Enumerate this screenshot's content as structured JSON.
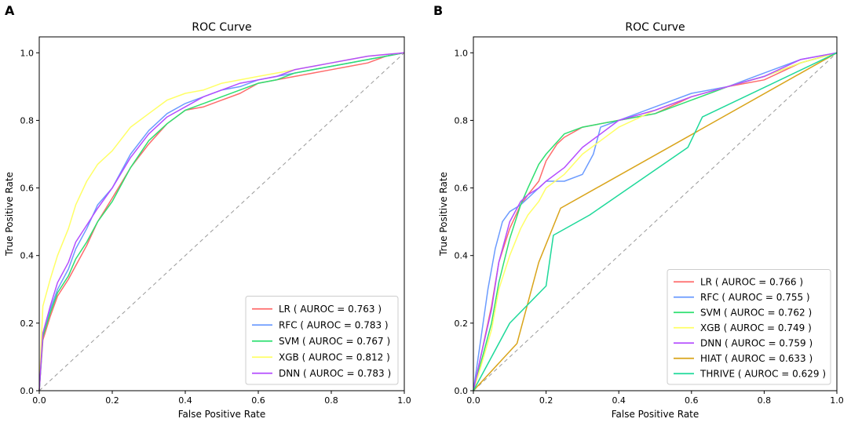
{
  "chart_data": [
    {
      "panel": "A",
      "type": "line",
      "title": "ROC Curve",
      "xlabel": "False Positive Rate",
      "ylabel": "True Positive Rate",
      "xlim": [
        0,
        1
      ],
      "ylim": [
        0,
        1
      ],
      "xticks": [
        "0.0",
        "0.2",
        "0.4",
        "0.6",
        "0.8",
        "1.0"
      ],
      "yticks": [
        "0.0",
        "0.2",
        "0.4",
        "0.6",
        "0.8",
        "1.0"
      ],
      "legend_position": "lower-right",
      "series": [
        {
          "name": "LR",
          "label": "LR ( AUROC = 0.763 )",
          "color": "#ff6b6b",
          "x": [
            0,
            0.01,
            0.03,
            0.05,
            0.08,
            0.1,
            0.13,
            0.16,
            0.2,
            0.25,
            0.3,
            0.35,
            0.4,
            0.45,
            0.5,
            0.55,
            0.6,
            0.65,
            0.7,
            0.75,
            0.8,
            0.85,
            0.9,
            0.95,
            1
          ],
          "y": [
            0,
            0.15,
            0.22,
            0.28,
            0.33,
            0.37,
            0.43,
            0.5,
            0.57,
            0.66,
            0.73,
            0.79,
            0.83,
            0.84,
            0.86,
            0.88,
            0.91,
            0.92,
            0.93,
            0.94,
            0.95,
            0.96,
            0.97,
            0.99,
            1
          ]
        },
        {
          "name": "RFC",
          "label": "RFC ( AUROC = 0.783 )",
          "color": "#6b9bff",
          "x": [
            0,
            0.01,
            0.03,
            0.05,
            0.08,
            0.1,
            0.13,
            0.16,
            0.2,
            0.25,
            0.3,
            0.35,
            0.4,
            0.45,
            0.5,
            0.55,
            0.6,
            0.65,
            0.7,
            0.75,
            0.8,
            0.85,
            0.9,
            0.95,
            1
          ],
          "y": [
            0,
            0.17,
            0.24,
            0.3,
            0.36,
            0.42,
            0.48,
            0.55,
            0.6,
            0.7,
            0.77,
            0.82,
            0.85,
            0.87,
            0.89,
            0.9,
            0.92,
            0.93,
            0.94,
            0.95,
            0.96,
            0.97,
            0.98,
            0.99,
            1
          ]
        },
        {
          "name": "SVM",
          "label": "SVM ( AUROC = 0.767 )",
          "color": "#2ee070",
          "x": [
            0,
            0.01,
            0.03,
            0.05,
            0.08,
            0.1,
            0.13,
            0.16,
            0.2,
            0.25,
            0.3,
            0.35,
            0.4,
            0.45,
            0.5,
            0.55,
            0.6,
            0.65,
            0.7,
            0.75,
            0.8,
            0.85,
            0.9,
            0.95,
            1
          ],
          "y": [
            0,
            0.16,
            0.23,
            0.29,
            0.34,
            0.39,
            0.44,
            0.5,
            0.56,
            0.66,
            0.74,
            0.79,
            0.83,
            0.85,
            0.87,
            0.89,
            0.91,
            0.92,
            0.94,
            0.95,
            0.96,
            0.97,
            0.98,
            0.99,
            1
          ]
        },
        {
          "name": "XGB",
          "label": "XGB ( AUROC = 0.812 )",
          "color": "#ffff66",
          "x": [
            0,
            0.01,
            0.03,
            0.05,
            0.08,
            0.1,
            0.13,
            0.16,
            0.2,
            0.25,
            0.3,
            0.35,
            0.4,
            0.45,
            0.5,
            0.55,
            0.6,
            0.65,
            0.7,
            0.75,
            0.8,
            0.85,
            0.9,
            0.95,
            1
          ],
          "y": [
            0,
            0.25,
            0.33,
            0.4,
            0.48,
            0.55,
            0.62,
            0.67,
            0.71,
            0.78,
            0.82,
            0.86,
            0.88,
            0.89,
            0.91,
            0.92,
            0.93,
            0.94,
            0.95,
            0.96,
            0.97,
            0.98,
            0.99,
            0.995,
            1
          ]
        },
        {
          "name": "DNN",
          "label": "DNN ( AUROC = 0.783 )",
          "color": "#b44dff",
          "x": [
            0,
            0.01,
            0.03,
            0.05,
            0.08,
            0.1,
            0.13,
            0.16,
            0.2,
            0.25,
            0.3,
            0.35,
            0.4,
            0.45,
            0.5,
            0.55,
            0.6,
            0.65,
            0.7,
            0.75,
            0.8,
            0.85,
            0.9,
            0.95,
            1
          ],
          "y": [
            0,
            0.17,
            0.25,
            0.32,
            0.38,
            0.44,
            0.49,
            0.54,
            0.6,
            0.69,
            0.76,
            0.81,
            0.84,
            0.87,
            0.89,
            0.91,
            0.92,
            0.93,
            0.95,
            0.96,
            0.97,
            0.98,
            0.99,
            0.995,
            1
          ]
        }
      ]
    },
    {
      "panel": "B",
      "type": "line",
      "title": "ROC Curve",
      "xlabel": "False Positive Rate",
      "ylabel": "True Positive Rate",
      "xlim": [
        0,
        1
      ],
      "ylim": [
        0,
        1
      ],
      "xticks": [
        "0.0",
        "0.2",
        "0.4",
        "0.6",
        "0.8",
        "1.0"
      ],
      "yticks": [
        "0.0",
        "0.2",
        "0.4",
        "0.6",
        "0.8",
        "1.0"
      ],
      "legend_position": "lower-right",
      "series": [
        {
          "name": "LR",
          "label": "LR ( AUROC = 0.766 )",
          "color": "#ff6b6b",
          "x": [
            0,
            0.02,
            0.05,
            0.07,
            0.1,
            0.13,
            0.15,
            0.18,
            0.2,
            0.23,
            0.25,
            0.3,
            0.35,
            0.4,
            0.5,
            0.6,
            0.7,
            0.8,
            0.9,
            1
          ],
          "y": [
            0,
            0.1,
            0.25,
            0.38,
            0.48,
            0.55,
            0.58,
            0.62,
            0.68,
            0.73,
            0.75,
            0.78,
            0.79,
            0.8,
            0.82,
            0.87,
            0.9,
            0.92,
            0.97,
            1
          ]
        },
        {
          "name": "RFC",
          "label": "RFC ( AUROC = 0.755 )",
          "color": "#6b9bff",
          "x": [
            0,
            0.02,
            0.04,
            0.06,
            0.08,
            0.1,
            0.13,
            0.15,
            0.18,
            0.2,
            0.25,
            0.3,
            0.33,
            0.35,
            0.4,
            0.5,
            0.6,
            0.7,
            0.8,
            0.9,
            1
          ],
          "y": [
            0,
            0.15,
            0.3,
            0.42,
            0.5,
            0.53,
            0.55,
            0.57,
            0.6,
            0.62,
            0.62,
            0.64,
            0.7,
            0.78,
            0.8,
            0.84,
            0.88,
            0.9,
            0.94,
            0.98,
            1
          ]
        },
        {
          "name": "SVM",
          "label": "SVM ( AUROC = 0.762 )",
          "color": "#2ee070",
          "x": [
            0,
            0.02,
            0.05,
            0.07,
            0.1,
            0.13,
            0.15,
            0.18,
            0.2,
            0.25,
            0.3,
            0.35,
            0.4,
            0.5,
            0.6,
            0.7,
            0.8,
            0.9,
            1
          ],
          "y": [
            0,
            0.08,
            0.2,
            0.32,
            0.45,
            0.55,
            0.6,
            0.67,
            0.7,
            0.76,
            0.78,
            0.79,
            0.8,
            0.82,
            0.86,
            0.9,
            0.93,
            0.97,
            1
          ]
        },
        {
          "name": "XGB",
          "label": "XGB ( AUROC = 0.749 )",
          "color": "#ffff66",
          "x": [
            0,
            0.02,
            0.05,
            0.07,
            0.1,
            0.13,
            0.15,
            0.18,
            0.2,
            0.25,
            0.3,
            0.35,
            0.4,
            0.5,
            0.6,
            0.7,
            0.8,
            0.9,
            1
          ],
          "y": [
            0,
            0.07,
            0.18,
            0.3,
            0.4,
            0.48,
            0.52,
            0.56,
            0.6,
            0.64,
            0.7,
            0.74,
            0.78,
            0.83,
            0.87,
            0.9,
            0.93,
            0.97,
            1
          ]
        },
        {
          "name": "DNN",
          "label": "DNN ( AUROC = 0.759 )",
          "color": "#b44dff",
          "x": [
            0,
            0.02,
            0.05,
            0.07,
            0.1,
            0.13,
            0.15,
            0.18,
            0.2,
            0.25,
            0.3,
            0.35,
            0.4,
            0.5,
            0.6,
            0.7,
            0.8,
            0.9,
            1
          ],
          "y": [
            0,
            0.1,
            0.24,
            0.38,
            0.5,
            0.56,
            0.58,
            0.6,
            0.62,
            0.66,
            0.72,
            0.76,
            0.8,
            0.83,
            0.87,
            0.9,
            0.93,
            0.98,
            1
          ]
        },
        {
          "name": "HIAT",
          "label": "HIAT ( AUROC = 0.633 )",
          "color": "#d9a41a",
          "x": [
            0,
            0.12,
            0.18,
            0.24,
            0.62,
            1
          ],
          "y": [
            0,
            0.14,
            0.38,
            0.54,
            0.77,
            1
          ]
        },
        {
          "name": "THRIVE",
          "label": "THRIVE ( AUROC = 0.629 )",
          "color": "#1ed99a",
          "x": [
            0,
            0.1,
            0.2,
            0.22,
            0.32,
            0.59,
            0.63,
            1
          ],
          "y": [
            0,
            0.2,
            0.31,
            0.46,
            0.52,
            0.72,
            0.81,
            1
          ]
        }
      ]
    }
  ]
}
